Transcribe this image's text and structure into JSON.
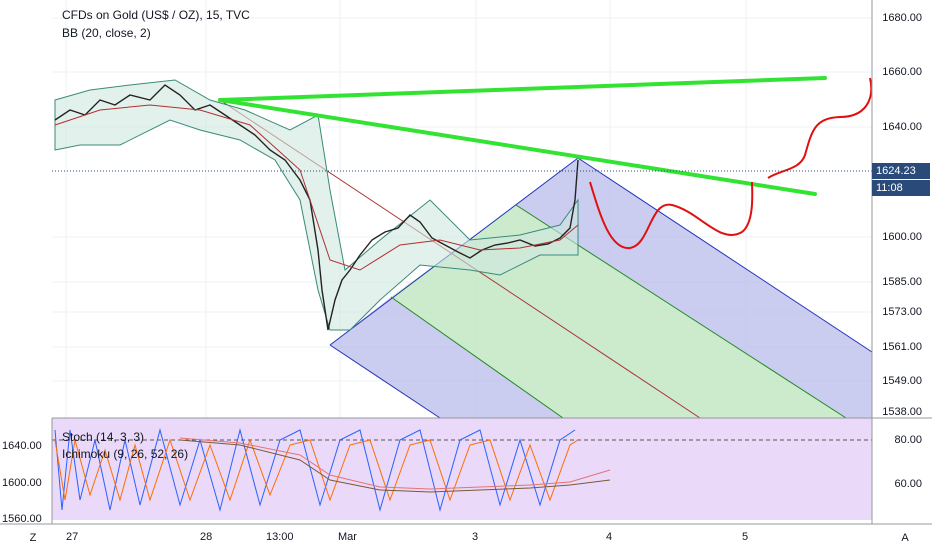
{
  "legend": {
    "title": "CFDs on Gold (US$ / OZ), 15, TVC",
    "indicator": "BB (20, close, 2)",
    "stoch": "Stoch (14, 3, 3)",
    "ichimoku": "Ichimoku (9, 26, 52, 26)"
  },
  "price_axis": [
    "1680.00",
    "1660.00",
    "1640.00",
    "1600.00",
    "1585.00",
    "1573.00",
    "1561.00",
    "1549.00",
    "1538.00"
  ],
  "current_price": "1624.23",
  "countdown": "11:08",
  "osc_axis": [
    "80.00",
    "60.00"
  ],
  "left_axis": [
    "1640.00",
    "1600.00",
    "1560.00"
  ],
  "time_axis": [
    "27",
    "28",
    "13:00",
    "Mar",
    "3",
    "4",
    "5"
  ],
  "corner": {
    "left": "Z",
    "right": "A"
  },
  "colors": {
    "accent": "#2a4a7a",
    "green_line": "#3fe03f",
    "annotation": "#e01010",
    "oscillator_bg": "#dcc0f5"
  }
}
